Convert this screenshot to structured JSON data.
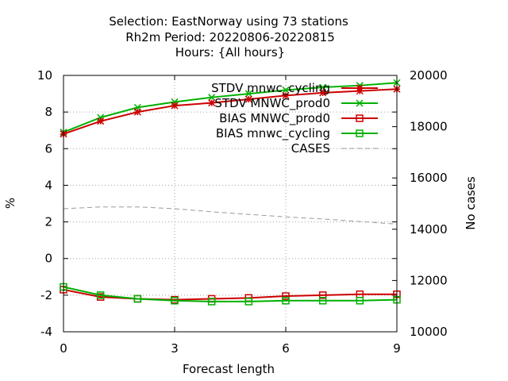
{
  "chart_data": {
    "type": "line",
    "title_lines": [
      "Selection: EastNorway using    73 stations",
      "Rh2m   Period: 20220806-20220815",
      "Hours: {All hours}"
    ],
    "xlabel": "Forecast length",
    "ylabel": "%",
    "y2label": "No cases",
    "xlim": [
      0,
      9
    ],
    "ylim": [
      -4,
      10
    ],
    "y2lim": [
      10000,
      20000
    ],
    "xticks": [
      0,
      3,
      6,
      9
    ],
    "yticks": [
      -4,
      -2,
      0,
      2,
      4,
      6,
      8,
      10
    ],
    "y2ticks": [
      10000,
      12000,
      14000,
      16000,
      18000,
      20000
    ],
    "grid": true,
    "legend_position": "top-right",
    "x": [
      0,
      1,
      2,
      3,
      4,
      5,
      6,
      7,
      8,
      9
    ],
    "series": [
      {
        "name": "STDV MNWC_prod0",
        "color": "#00b000",
        "marker": "cross",
        "axis": "y",
        "dash": false,
        "values": [
          6.9,
          7.7,
          8.25,
          8.55,
          8.8,
          9.0,
          9.2,
          9.35,
          9.45,
          9.6
        ]
      },
      {
        "name": "STDV mnwc_cycling",
        "color": "#cc0000",
        "marker": "star",
        "axis": "y",
        "dash": false,
        "values": [
          6.8,
          7.5,
          8.0,
          8.35,
          8.5,
          8.7,
          8.9,
          9.05,
          9.15,
          9.25
        ]
      },
      {
        "name": "BIAS MNWC_prod0",
        "color": "#cc0000",
        "marker": "square",
        "axis": "y",
        "dash": false,
        "values": [
          -1.7,
          -2.1,
          -2.2,
          -2.25,
          -2.2,
          -2.15,
          -2.05,
          -2.0,
          -1.95,
          -1.95
        ]
      },
      {
        "name": "BIAS mnwc_cycling",
        "color": "#00b000",
        "marker": "square",
        "axis": "y",
        "dash": false,
        "values": [
          -1.55,
          -2.0,
          -2.2,
          -2.3,
          -2.35,
          -2.35,
          -2.3,
          -2.3,
          -2.3,
          -2.25
        ]
      },
      {
        "name": "CASES",
        "color": "#999999",
        "marker": "none",
        "axis": "y2",
        "dash": true,
        "values": [
          14800,
          14870,
          14870,
          14800,
          14680,
          14580,
          14480,
          14400,
          14300,
          14200
        ]
      }
    ],
    "legend_order": [
      1,
      0,
      2,
      3,
      4
    ]
  }
}
